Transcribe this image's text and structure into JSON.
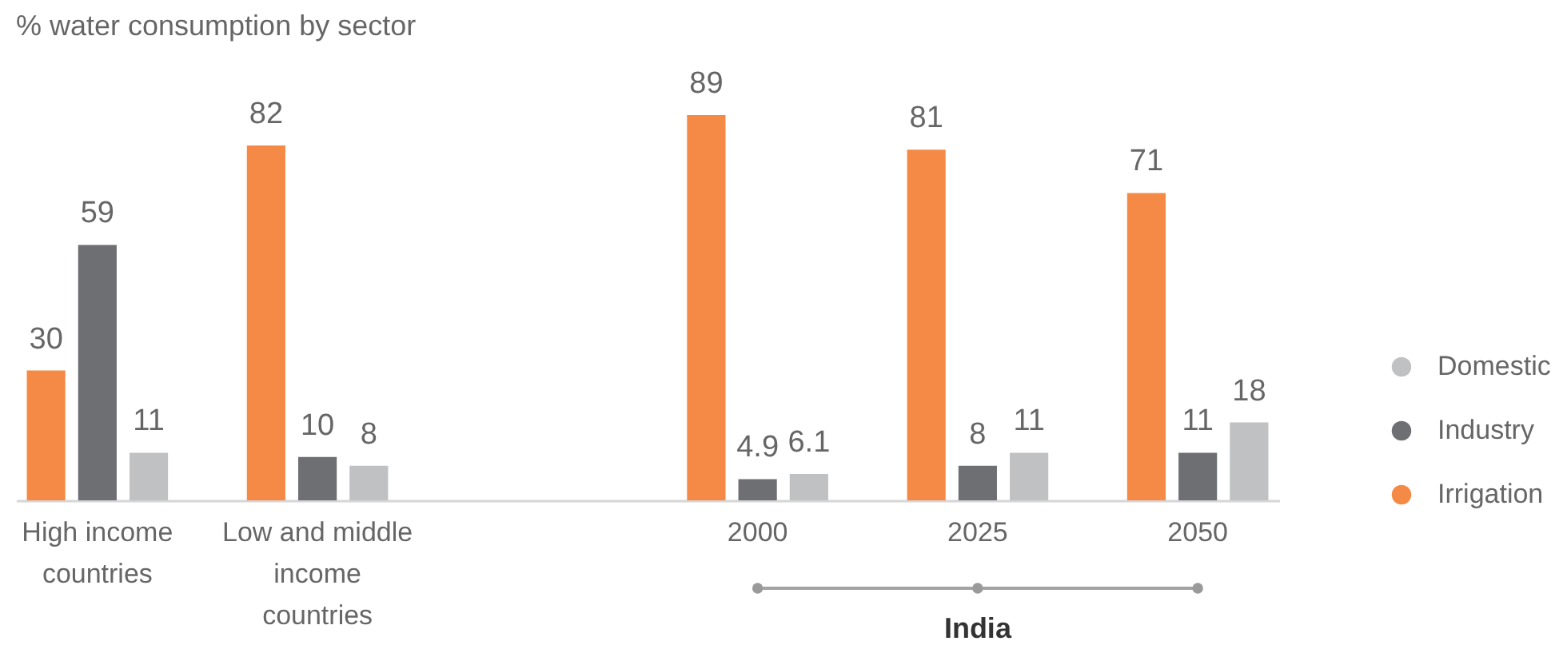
{
  "chart_data": {
    "type": "bar",
    "title": "% water consumption by sector",
    "categories": [
      "High income countries",
      "Low and middle income countries",
      null,
      "2000",
      "2025",
      "2050"
    ],
    "series": [
      {
        "name": "Irrigation",
        "color": "#f58a46",
        "values": [
          30,
          82,
          null,
          89,
          81,
          71
        ]
      },
      {
        "name": "Industry",
        "color": "#6e6f73",
        "values": [
          59,
          10,
          null,
          4.9,
          8,
          11
        ]
      },
      {
        "name": "Domestic",
        "color": "#c0c1c3",
        "values": [
          11,
          8,
          null,
          6.1,
          11,
          18
        ]
      }
    ],
    "data_labels": true,
    "legend": "right",
    "annotations": [
      "India"
    ]
  }
}
